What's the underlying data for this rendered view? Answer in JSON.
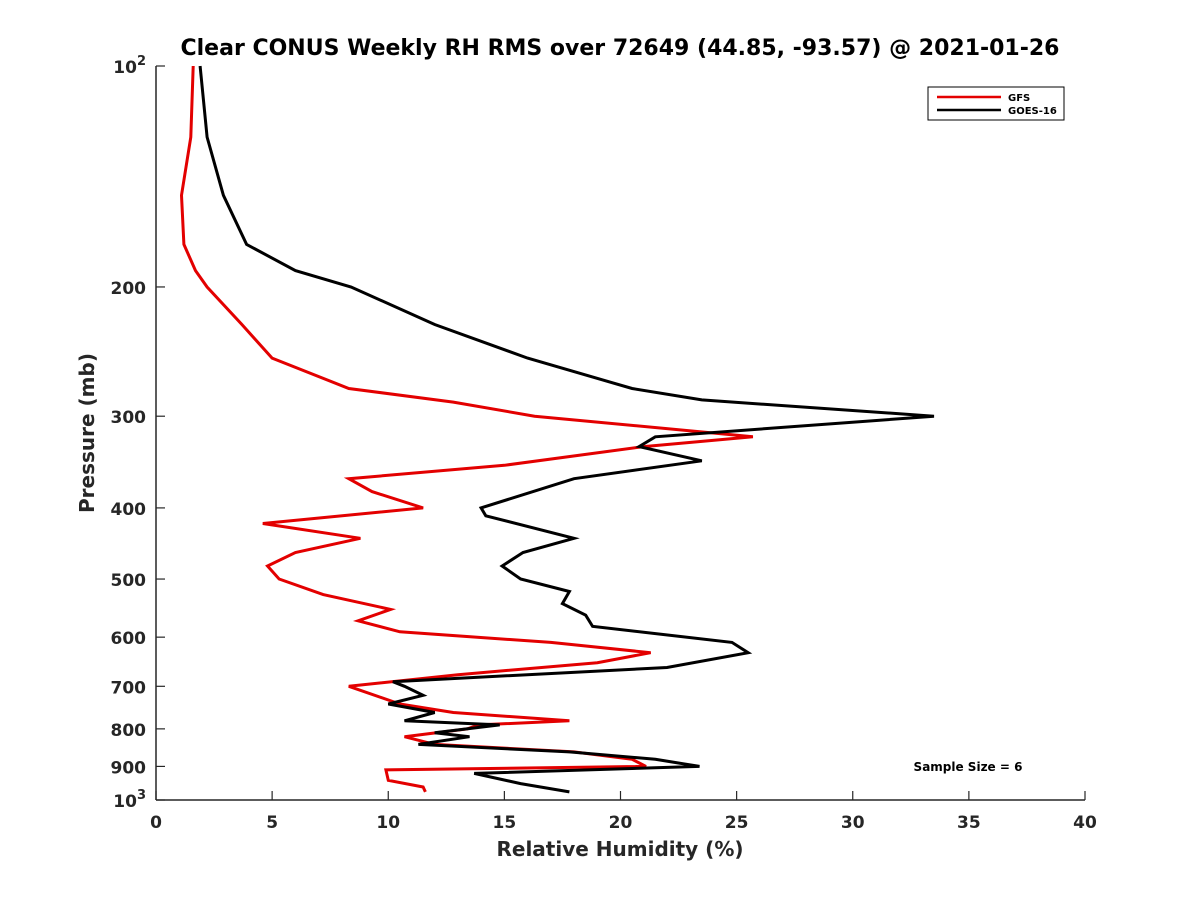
{
  "chart_data": {
    "type": "line",
    "title": "Clear CONUS Weekly RH RMS over 72649 (44.85, -93.57) @ 2021-01-26",
    "xlabel": "Relative Humidity (%)",
    "ylabel": "Pressure (mb)",
    "xlim": [
      0,
      40
    ],
    "ylim": [
      100,
      1000
    ],
    "yscale": "log",
    "y_reversed": true,
    "grid": false,
    "legend_position": "top-right",
    "x_ticks": [
      0,
      5,
      10,
      15,
      20,
      25,
      30,
      35,
      40
    ],
    "y_ticks": [
      {
        "value": 100,
        "base": "10",
        "exp": "2"
      },
      {
        "value": 200,
        "label": "200"
      },
      {
        "value": 300,
        "label": "300"
      },
      {
        "value": 400,
        "label": "400"
      },
      {
        "value": 500,
        "label": "500"
      },
      {
        "value": 600,
        "label": "600"
      },
      {
        "value": 700,
        "label": "700"
      },
      {
        "value": 800,
        "label": "800"
      },
      {
        "value": 900,
        "label": "900"
      },
      {
        "value": 1000,
        "base": "10",
        "exp": "3"
      }
    ],
    "annotation": "Sample Size = 6",
    "series": [
      {
        "name": "GFS",
        "color": "#e30000",
        "points": [
          [
            1.6,
            100
          ],
          [
            1.5,
            125
          ],
          [
            1.1,
            150
          ],
          [
            1.2,
            175
          ],
          [
            1.7,
            190
          ],
          [
            2.2,
            200
          ],
          [
            3.7,
            225
          ],
          [
            5.0,
            250
          ],
          [
            8.3,
            275
          ],
          [
            12.8,
            287
          ],
          [
            16.3,
            300
          ],
          [
            25.7,
            320
          ],
          [
            21.0,
            330
          ],
          [
            15.0,
            350
          ],
          [
            8.3,
            365
          ],
          [
            9.3,
            380
          ],
          [
            11.5,
            400
          ],
          [
            4.6,
            420
          ],
          [
            8.8,
            440
          ],
          [
            6.0,
            460
          ],
          [
            4.8,
            480
          ],
          [
            5.3,
            500
          ],
          [
            7.2,
            525
          ],
          [
            10.1,
            550
          ],
          [
            8.7,
            570
          ],
          [
            10.5,
            590
          ],
          [
            17.0,
            610
          ],
          [
            21.3,
            630
          ],
          [
            19.0,
            650
          ],
          [
            13.0,
            675
          ],
          [
            8.3,
            700
          ],
          [
            10.5,
            740
          ],
          [
            12.8,
            760
          ],
          [
            17.8,
            780
          ],
          [
            13.9,
            790
          ],
          [
            13.4,
            800
          ],
          [
            10.7,
            820
          ],
          [
            12.0,
            840
          ],
          [
            18.0,
            860
          ],
          [
            20.5,
            880
          ],
          [
            21.1,
            900
          ],
          [
            9.9,
            910
          ],
          [
            10.0,
            940
          ],
          [
            11.5,
            960
          ],
          [
            11.6,
            975
          ]
        ]
      },
      {
        "name": "GOES-16",
        "color": "#000000",
        "points": [
          [
            1.9,
            100
          ],
          [
            2.2,
            125
          ],
          [
            2.9,
            150
          ],
          [
            3.9,
            175
          ],
          [
            6.0,
            190
          ],
          [
            8.4,
            200
          ],
          [
            12.0,
            225
          ],
          [
            16.0,
            250
          ],
          [
            20.5,
            275
          ],
          [
            23.5,
            285
          ],
          [
            33.5,
            300
          ],
          [
            21.5,
            320
          ],
          [
            20.8,
            330
          ],
          [
            23.5,
            345
          ],
          [
            18.0,
            365
          ],
          [
            14.0,
            400
          ],
          [
            14.2,
            410
          ],
          [
            18.0,
            440
          ],
          [
            15.8,
            460
          ],
          [
            14.9,
            480
          ],
          [
            15.7,
            500
          ],
          [
            17.8,
            520
          ],
          [
            17.5,
            540
          ],
          [
            18.5,
            560
          ],
          [
            18.8,
            580
          ],
          [
            24.8,
            610
          ],
          [
            25.5,
            630
          ],
          [
            22.0,
            660
          ],
          [
            10.2,
            690
          ],
          [
            10.7,
            700
          ],
          [
            11.5,
            720
          ],
          [
            10.0,
            740
          ],
          [
            12.0,
            760
          ],
          [
            10.7,
            780
          ],
          [
            14.8,
            790
          ],
          [
            12.0,
            810
          ],
          [
            13.5,
            820
          ],
          [
            11.3,
            840
          ],
          [
            17.8,
            860
          ],
          [
            21.5,
            880
          ],
          [
            23.4,
            900
          ],
          [
            13.7,
            920
          ],
          [
            15.7,
            950
          ],
          [
            17.8,
            975
          ]
        ]
      }
    ]
  }
}
